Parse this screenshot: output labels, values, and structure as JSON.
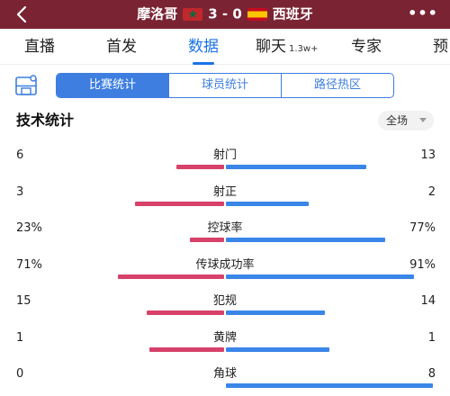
{
  "header": {
    "home_team": "摩洛哥",
    "score": "3 - 0",
    "away_team": "西班牙",
    "home_flag_icon": "morocco-flag-icon",
    "away_flag_icon": "spain-flag-icon",
    "more_label": "•••"
  },
  "tabs": [
    {
      "label": "直播"
    },
    {
      "label": "首发"
    },
    {
      "label": "数据",
      "active": true
    },
    {
      "label": "聊天",
      "sub": "1.3w+"
    },
    {
      "label": "专家"
    },
    {
      "label": "预"
    }
  ],
  "filter": {
    "segments": [
      {
        "label": "比赛统计",
        "active": true
      },
      {
        "label": "球员统计"
      },
      {
        "label": "路径热区"
      }
    ]
  },
  "section": {
    "title": "技术统计",
    "scope": "全场"
  },
  "colors": {
    "header_bg": "#7a2433",
    "accent": "#1a73e8",
    "home_bar": "#d7416a",
    "away_bar": "#3a86e8"
  },
  "stats": [
    {
      "label": "射门",
      "home": "6",
      "away": "13",
      "home_share": 0.32,
      "away_share": 0.68
    },
    {
      "label": "射正",
      "home": "3",
      "away": "2",
      "home_share": 0.6,
      "away_share": 0.4
    },
    {
      "label": "控球率",
      "home": "23%",
      "away": "77%",
      "home_share": 0.23,
      "away_share": 0.77
    },
    {
      "label": "传球成功率",
      "home": "71%",
      "away": "91%",
      "home_share": 0.71,
      "away_share": 0.91
    },
    {
      "label": "犯规",
      "home": "15",
      "away": "14",
      "home_share": 0.52,
      "away_share": 0.48
    },
    {
      "label": "黄牌",
      "home": "1",
      "away": "1",
      "home_share": 0.5,
      "away_share": 0.5
    },
    {
      "label": "角球",
      "home": "0",
      "away": "8",
      "home_share": 0.0,
      "away_share": 1.0
    }
  ]
}
